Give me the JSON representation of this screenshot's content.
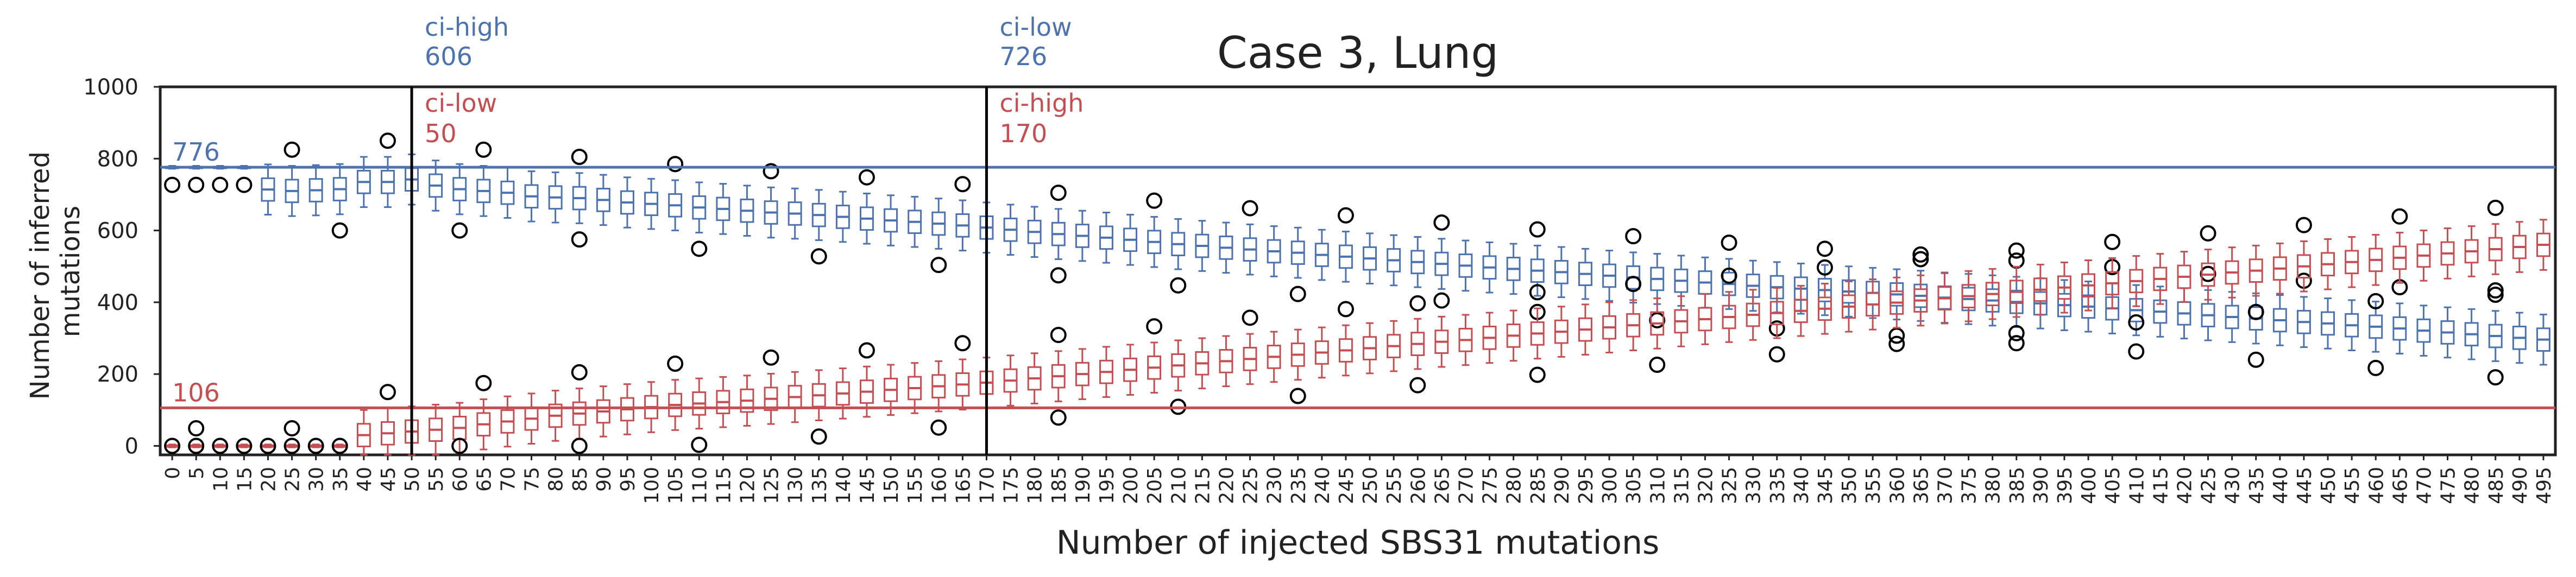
{
  "chart_data": {
    "type": "box",
    "title": "Case 3, Lung",
    "xlabel": "Number of injected SBS31 mutations",
    "ylabel_lines": [
      "Number of inferred",
      "mutations"
    ],
    "ylim": [
      -25,
      1000
    ],
    "yticks": [
      0,
      200,
      400,
      600,
      800,
      1000
    ],
    "grid": false,
    "colors": {
      "blue": "#4C72B0",
      "red": "#C44E52",
      "black": "#000000"
    },
    "x_start": 0,
    "x_step": 5,
    "categories": [
      "0",
      "5",
      "10",
      "15",
      "20",
      "25",
      "30",
      "35",
      "40",
      "45",
      "50",
      "55",
      "60",
      "65",
      "70",
      "75",
      "80",
      "85",
      "90",
      "95",
      "100",
      "105",
      "110",
      "115",
      "120",
      "125",
      "130",
      "135",
      "140",
      "145",
      "150",
      "155",
      "160",
      "165",
      "170",
      "175",
      "180",
      "185",
      "190",
      "195",
      "200",
      "205",
      "210",
      "215",
      "220",
      "225",
      "230",
      "235",
      "240",
      "245",
      "250",
      "255",
      "260",
      "265",
      "270",
      "275",
      "280",
      "285",
      "290",
      "295",
      "300",
      "305",
      "310",
      "315",
      "320",
      "325",
      "330",
      "335",
      "340",
      "345",
      "350",
      "355",
      "360",
      "365",
      "370",
      "375",
      "380",
      "385",
      "390",
      "395",
      "400",
      "405",
      "410",
      "415",
      "420",
      "425",
      "430",
      "435",
      "440",
      "445",
      "450",
      "455",
      "460",
      "465",
      "470",
      "475",
      "480",
      "485",
      "490",
      "495"
    ],
    "reference_lines": [
      {
        "series": "blue",
        "value": 776,
        "label": "776"
      },
      {
        "series": "red",
        "value": 106,
        "label": "106"
      }
    ],
    "vertical_lines": [
      {
        "x": 50,
        "blue_label": [
          "ci-high",
          "606"
        ],
        "red_label": [
          "ci-low",
          "50"
        ]
      },
      {
        "x": 170,
        "blue_label": [
          "ci-low",
          "726"
        ],
        "red_label": [
          "ci-high",
          "170"
        ]
      }
    ],
    "series": [
      {
        "color": "blue",
        "medians": [
          776,
          776,
          776,
          776,
          714,
          710,
          712,
          715,
          735,
          735,
          742,
          725,
          715,
          710,
          705,
          695,
          692,
          690,
          685,
          678,
          674,
          670,
          664,
          660,
          655,
          650,
          647,
          643,
          638,
          633,
          628,
          624,
          619,
          614,
          608,
          602,
          596,
          590,
          585,
          580,
          574,
          568,
          562,
          557,
          552,
          547,
          542,
          538,
          532,
          527,
          522,
          517,
          512,
          507,
          502,
          497,
          493,
          488,
          484,
          479,
          474,
          469,
          465,
          460,
          455,
          451,
          446,
          442,
          438,
          434,
          430,
          426,
          422,
          418,
          413,
          409,
          405,
          401,
          397,
          392,
          388,
          383,
          378,
          374,
          369,
          364,
          359,
          355,
          350,
          345,
          341,
          336,
          332,
          327,
          321,
          316,
          311,
          306,
          301,
          296
        ]
      },
      {
        "color": "red",
        "medians": [
          0,
          0,
          0,
          0,
          0,
          0,
          0,
          0,
          30,
          35,
          40,
          45,
          50,
          60,
          68,
          76,
          84,
          90,
          96,
          102,
          108,
          114,
          118,
          122,
          126,
          131,
          136,
          141,
          146,
          151,
          156,
          161,
          166,
          171,
          176,
          182,
          188,
          194,
          200,
          206,
          212,
          218,
          224,
          230,
          236,
          242,
          248,
          254,
          260,
          266,
          272,
          278,
          284,
          290,
          295,
          301,
          307,
          313,
          318,
          324,
          330,
          336,
          341,
          347,
          353,
          359,
          365,
          370,
          376,
          382,
          388,
          394,
          399,
          405,
          411,
          417,
          423,
          429,
          435,
          441,
          447,
          453,
          459,
          465,
          471,
          477,
          483,
          488,
          494,
          500,
          506,
          512,
          518,
          524,
          530,
          536,
          542,
          548,
          554,
          560
        ]
      }
    ]
  }
}
